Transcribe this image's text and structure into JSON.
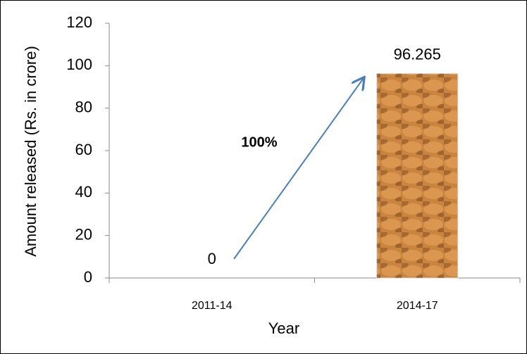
{
  "chart_data": {
    "type": "bar",
    "categories": [
      "2011-14",
      "2014-17"
    ],
    "values": [
      0,
      96.265
    ],
    "color": "#c9843f",
    "ylim": [
      0,
      120
    ],
    "yticks": [
      0,
      20,
      40,
      60,
      80,
      100,
      120
    ],
    "y_label": "Amount released (Rs. in crore)",
    "x_label": "Year",
    "annotation": "100%"
  }
}
